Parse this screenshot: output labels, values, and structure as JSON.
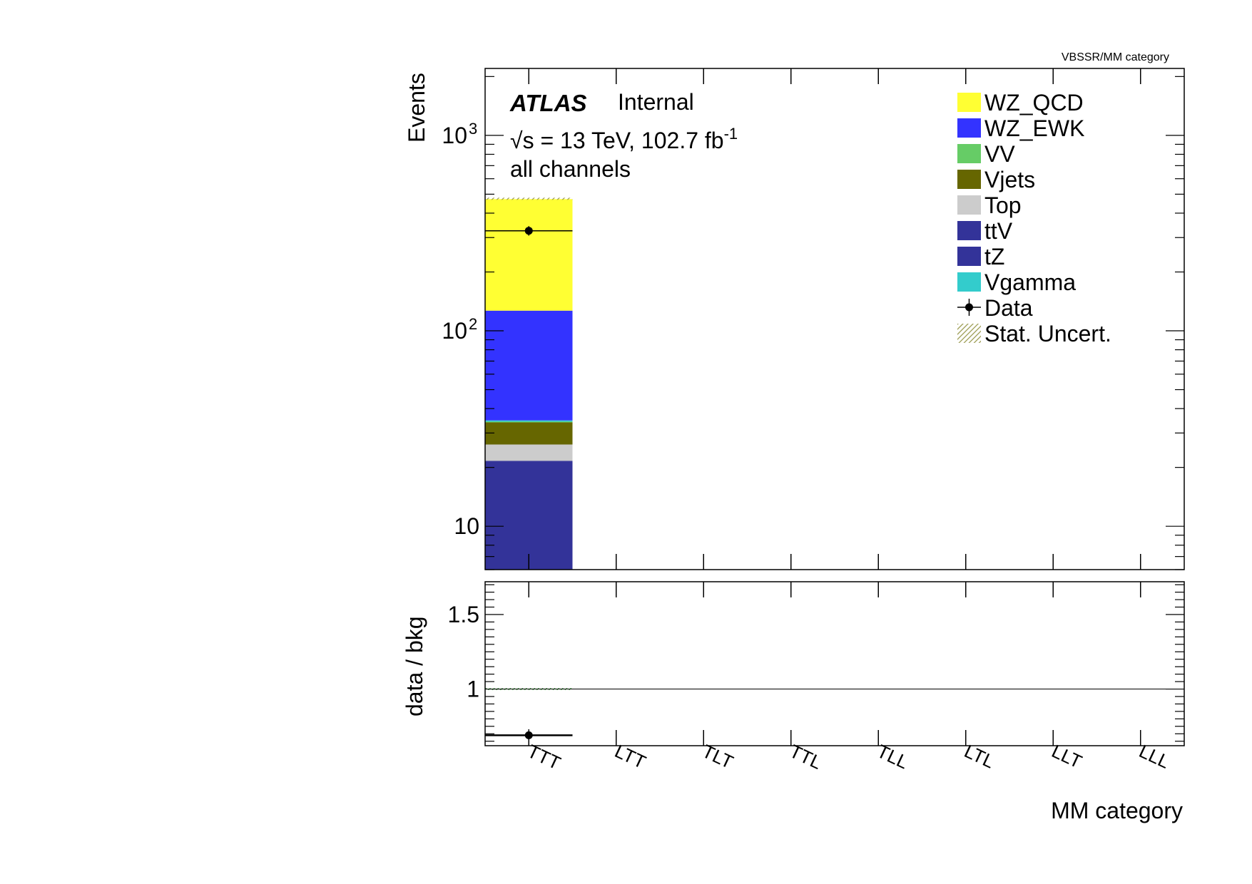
{
  "chart_data": [
    {
      "type": "bar",
      "stacked": true,
      "corner_label": "VBSSR/MM category",
      "ylabel": "Events",
      "xlabel": "MM category",
      "yscale": "log",
      "ylim": [
        6,
        2200
      ],
      "yticks": [
        {
          "value": 10,
          "label": "10",
          "sup": ""
        },
        {
          "value": 100,
          "label": "10",
          "sup": "2"
        },
        {
          "value": 1000,
          "label": "10",
          "sup": "3"
        }
      ],
      "categories": [
        "TTT",
        "LTT",
        "TLT",
        "TTL",
        "TLL",
        "LTL",
        "LLT",
        "LLL"
      ],
      "annotations": {
        "atlas": "ATLAS",
        "internal": "Internal",
        "sqrt": "√",
        "energy": "s = 13 TeV, 102.7 fb",
        "lumi_sup": "-1",
        "channels": "all channels"
      },
      "series": [
        {
          "name": "tZ",
          "color": "#333399",
          "values": [
            21.5,
            0,
            0,
            0,
            0,
            0,
            0,
            0
          ]
        },
        {
          "name": "ttV",
          "color": "#333399",
          "values": [
            0.1,
            0,
            0,
            0,
            0,
            0,
            0,
            0
          ]
        },
        {
          "name": "Top",
          "color": "#cccccc",
          "values": [
            4.6,
            0,
            0,
            0,
            0,
            0,
            0,
            0
          ]
        },
        {
          "name": "Vjets",
          "color": "#666600",
          "values": [
            7.8,
            0,
            0,
            0,
            0,
            0,
            0,
            0
          ]
        },
        {
          "name": "VV",
          "color": "#66cc66",
          "values": [
            0.3,
            0,
            0,
            0,
            0,
            0,
            0,
            0
          ]
        },
        {
          "name": "Vgamma",
          "color": "#33cccc",
          "values": [
            0.5,
            0,
            0,
            0,
            0,
            0,
            0,
            0
          ]
        },
        {
          "name": "WZ_EWK",
          "color": "#3333ff",
          "values": [
            92,
            0,
            0,
            0,
            0,
            0,
            0,
            0
          ]
        },
        {
          "name": "WZ_QCD",
          "color": "#ffff33",
          "values": [
            345,
            0,
            0,
            0,
            0,
            0,
            0,
            0
          ]
        }
      ],
      "data_points": [
        {
          "category": "TTT",
          "value": 325,
          "error": 18
        }
      ],
      "legend": {
        "placement": "top-right",
        "entries": [
          {
            "label": "WZ_QCD",
            "kind": "fill",
            "color": "#ffff33"
          },
          {
            "label": "WZ_EWK",
            "kind": "fill",
            "color": "#3333ff"
          },
          {
            "label": "VV",
            "kind": "fill",
            "color": "#66cc66"
          },
          {
            "label": "Vjets",
            "kind": "fill",
            "color": "#666600"
          },
          {
            "label": "Top",
            "kind": "fill",
            "color": "#cccccc"
          },
          {
            "label": "ttV",
            "kind": "fill",
            "color": "#333399"
          },
          {
            "label": "tZ",
            "kind": "fill",
            "color": "#333399"
          },
          {
            "label": "Vgamma",
            "kind": "fill",
            "color": "#33cccc"
          },
          {
            "label": "Data",
            "kind": "marker",
            "color": "#000000"
          },
          {
            "label": "Stat. Uncert.",
            "kind": "hatch",
            "color": "#99994d"
          }
        ]
      }
    },
    {
      "type": "scatter",
      "ylabel": "data / bkg",
      "ylim": [
        0.62,
        1.72
      ],
      "yticks": [
        {
          "value": 1,
          "label": "1"
        },
        {
          "value": 1.5,
          "label": "1.5"
        }
      ],
      "reference_line": 1,
      "categories": [
        "TTT",
        "LTT",
        "TLT",
        "TTL",
        "TLL",
        "LTL",
        "LLT",
        "LLL"
      ],
      "points": [
        {
          "category": "TTT",
          "value": 0.69,
          "error": 0.04
        }
      ]
    }
  ]
}
